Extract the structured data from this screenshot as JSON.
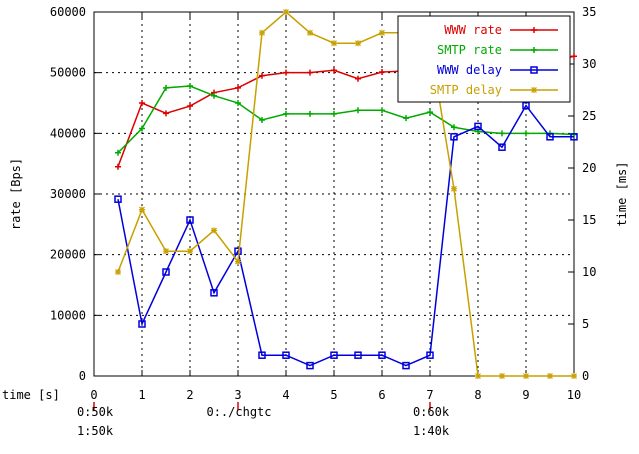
{
  "chart_data": {
    "type": "line",
    "xlabel": "time [s]",
    "ylabel": "rate [Bps]",
    "y2label": "time [ms]",
    "xlim": [
      0,
      10
    ],
    "ylim": [
      0,
      60000
    ],
    "y2lim": [
      0,
      35
    ],
    "xticks": [
      "0",
      "1",
      "2",
      "3",
      "4",
      "5",
      "6",
      "7",
      "8",
      "9",
      "10"
    ],
    "yticks": [
      "0",
      "10000",
      "20000",
      "30000",
      "40000",
      "50000",
      "60000"
    ],
    "y2ticks": [
      "0",
      "5",
      "10",
      "15",
      "20",
      "25",
      "30",
      "35"
    ],
    "grid": true,
    "legend_position": "top-right",
    "series": [
      {
        "name": "WWW rate",
        "axis": "left",
        "color": "#dd0000",
        "marker": "plus",
        "x": [
          0.5,
          1.0,
          1.5,
          2.0,
          2.5,
          3.0,
          3.5,
          4.0,
          4.5,
          5.0,
          5.5,
          6.0,
          6.5,
          7.0,
          7.5,
          8.0,
          8.5,
          9.0,
          9.5,
          10.0
        ],
        "values": [
          34500,
          45000,
          43300,
          44500,
          46700,
          47500,
          49500,
          50000,
          50000,
          50400,
          49000,
          50100,
          50300,
          52000,
          52500,
          52600,
          52500,
          51500,
          51800,
          52700
        ]
      },
      {
        "name": "SMTP rate",
        "axis": "left",
        "color": "#00aa00",
        "marker": "plus",
        "x": [
          0.5,
          1.0,
          1.5,
          2.0,
          2.5,
          3.0,
          3.5,
          4.0,
          4.5,
          5.0,
          5.5,
          6.0,
          6.5,
          7.0,
          7.5,
          8.0,
          8.5,
          9.0,
          9.5,
          10.0
        ],
        "values": [
          36800,
          40800,
          47500,
          47800,
          46200,
          45000,
          42200,
          43200,
          43200,
          43200,
          43800,
          43800,
          42500,
          43500,
          41000,
          40300,
          40000,
          40000,
          40000,
          39800
        ]
      },
      {
        "name": "WWW delay",
        "axis": "right",
        "color": "#0000dd",
        "marker": "square",
        "x": [
          0.5,
          1.0,
          1.5,
          2.0,
          2.5,
          3.0,
          3.5,
          4.0,
          4.5,
          5.0,
          5.5,
          6.0,
          6.5,
          7.0,
          7.5,
          8.0,
          8.5,
          9.0,
          9.5,
          10.0
        ],
        "values": [
          17,
          5,
          10,
          15,
          8,
          12,
          2,
          2,
          1,
          2,
          2,
          2,
          1,
          2,
          23,
          24,
          22,
          26,
          23,
          23
        ]
      },
      {
        "name": "SMTP delay",
        "axis": "right",
        "color": "#c8a000",
        "marker": "star",
        "x": [
          0.5,
          1.0,
          1.5,
          2.0,
          2.5,
          3.0,
          3.5,
          4.0,
          4.5,
          5.0,
          5.5,
          6.0,
          6.5,
          7.0,
          7.5,
          8.0,
          8.5,
          9.0,
          9.5,
          10.0
        ],
        "values": [
          10,
          16,
          12,
          12,
          14,
          11,
          33,
          35,
          33,
          32,
          32,
          33,
          33,
          32,
          18,
          0,
          0,
          0,
          0,
          0
        ]
      }
    ],
    "annotations": [
      {
        "x": 0,
        "lines": [
          "0:50k",
          "1:50k"
        ]
      },
      {
        "x": 3,
        "lines": [
          "0:./chgtc"
        ]
      },
      {
        "x": 7,
        "lines": [
          "0:60k",
          "1:40k"
        ]
      }
    ]
  }
}
